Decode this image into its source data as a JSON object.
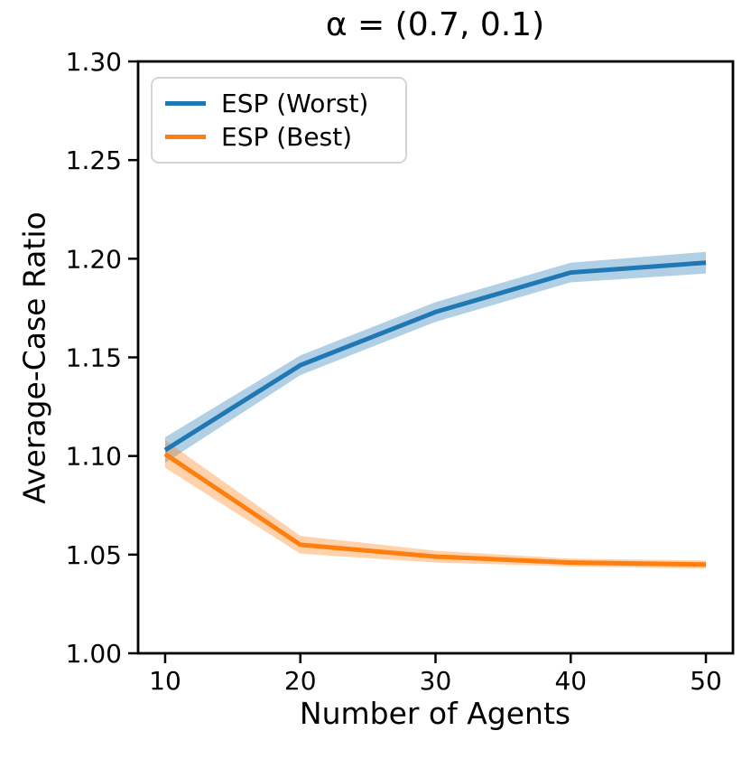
{
  "title": "α = (0.7, 0.1)",
  "chart_data": {
    "type": "line",
    "title": "α = (0.7, 0.1)",
    "xlabel": "Number of Agents",
    "ylabel": "Average-Case Ratio",
    "x": [
      10,
      20,
      30,
      40,
      50
    ],
    "series": [
      {
        "name": "ESP (Worst)",
        "color": "#1f77b4",
        "values": [
          1.103,
          1.146,
          1.173,
          1.193,
          1.198
        ],
        "band_halfwidth": [
          0.0065,
          0.005,
          0.005,
          0.005,
          0.0055
        ]
      },
      {
        "name": "ESP (Best)",
        "color": "#ff7f0e",
        "values": [
          1.101,
          1.055,
          1.049,
          1.046,
          1.045
        ],
        "band_halfwidth": [
          0.007,
          0.0045,
          0.003,
          0.002,
          0.002
        ]
      }
    ],
    "band_opacity": 0.35,
    "line_width": 5,
    "xlim": [
      8,
      52
    ],
    "ylim": [
      1.0,
      1.3
    ],
    "xticks": [
      10,
      20,
      30,
      40,
      50
    ],
    "xtick_labels": [
      "10",
      "20",
      "30",
      "40",
      "50"
    ],
    "yticks": [
      1.0,
      1.05,
      1.1,
      1.15,
      1.2,
      1.25,
      1.3
    ],
    "ytick_labels": [
      "1.00",
      "1.05",
      "1.10",
      "1.15",
      "1.20",
      "1.25",
      "1.30"
    ],
    "legend_position": "upper left",
    "grid": false,
    "axis_color": "#000000"
  }
}
